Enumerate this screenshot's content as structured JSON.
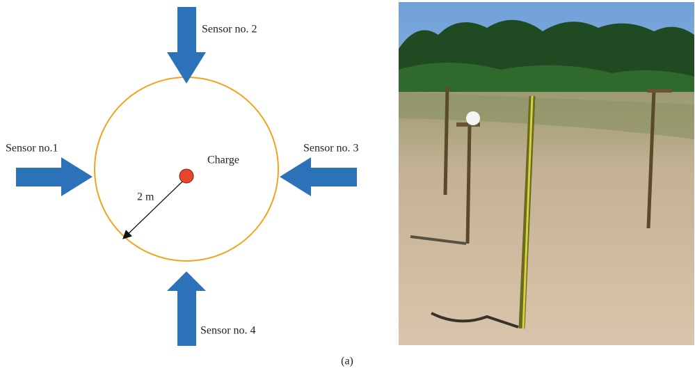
{
  "diagram": {
    "sensors": [
      "Sensor no.1",
      "Sensor no. 2",
      "Sensor no. 3",
      "Sensor no. 4"
    ],
    "charge": "Charge",
    "radius": "2 m",
    "caption": "(a)"
  }
}
